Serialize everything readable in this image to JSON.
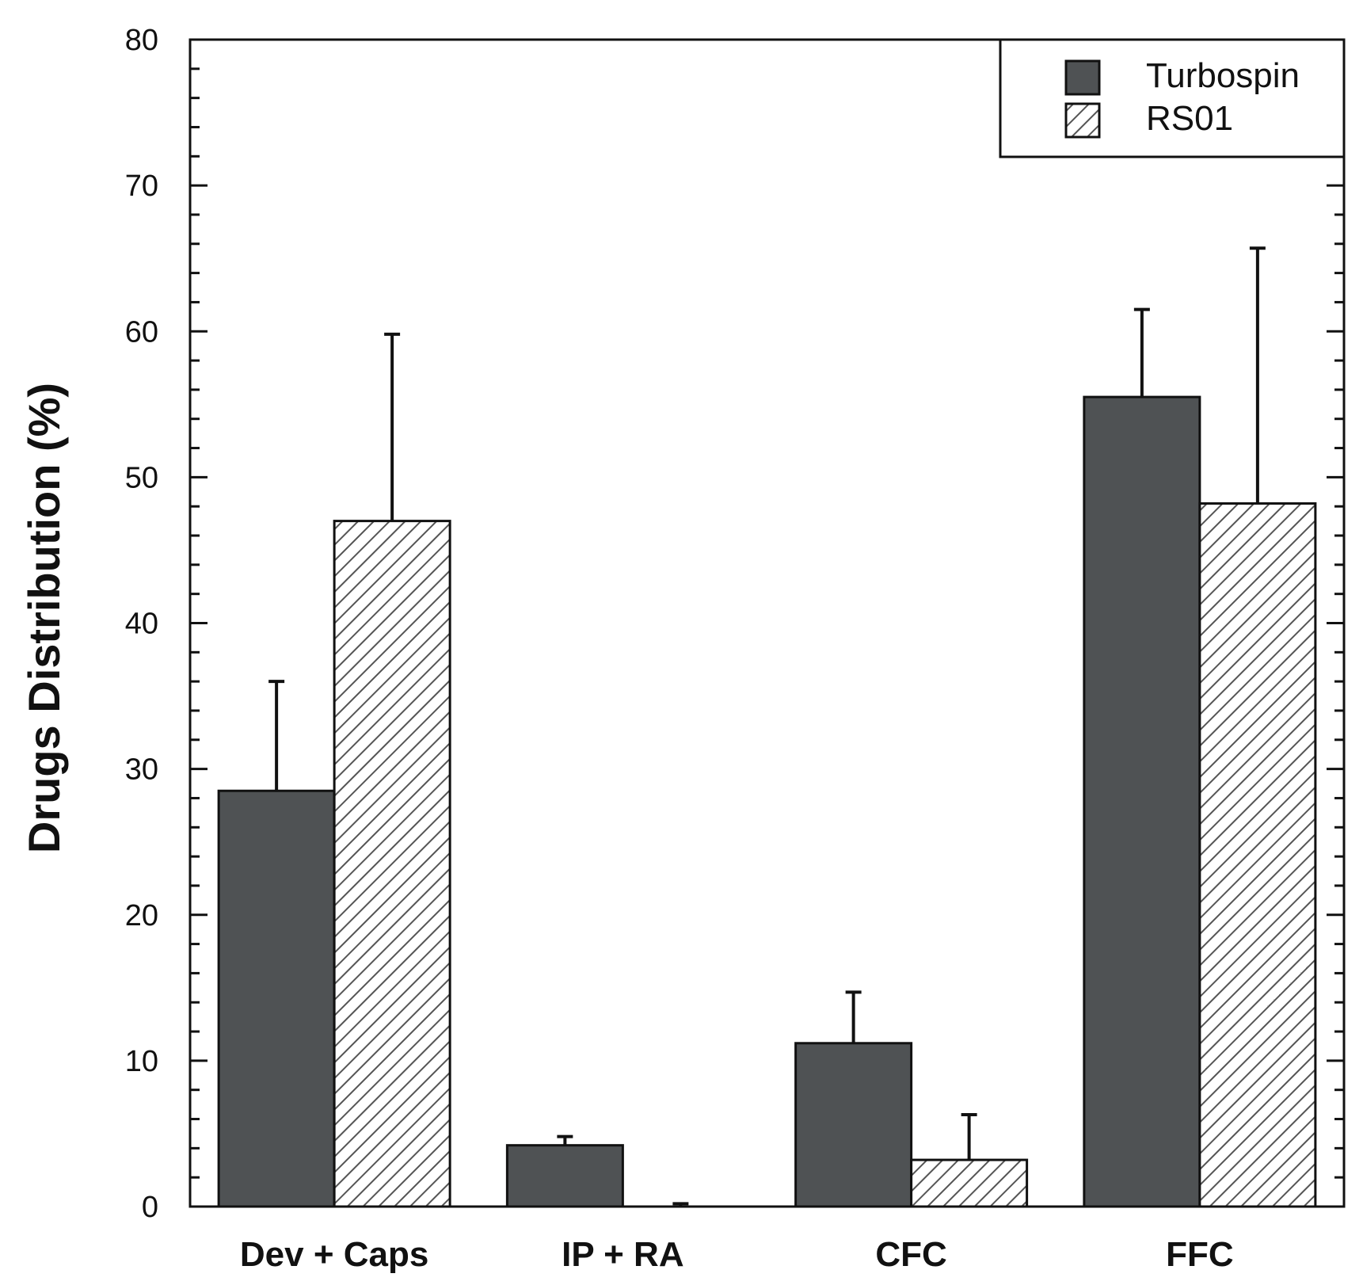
{
  "chart_data": {
    "type": "bar",
    "title": "",
    "xlabel": "",
    "ylabel": "Drugs Distribution (%)",
    "ylim": [
      0,
      80
    ],
    "yticks": [
      "0",
      "10",
      "20",
      "30",
      "40",
      "50",
      "60",
      "70",
      "80"
    ],
    "grid": false,
    "legend_position": "top-right",
    "categories": [
      "Dev + Caps",
      "IP + RA",
      "CFC",
      "FFC"
    ],
    "series": [
      {
        "name": "Turbospin",
        "fill": "solid",
        "color": "#4f5254",
        "values": [
          28.5,
          4.2,
          11.2,
          55.5
        ],
        "error": [
          7.5,
          0.6,
          3.5,
          6.0
        ]
      },
      {
        "name": "RS01",
        "fill": "hatched",
        "color": "#555555",
        "values": [
          47.0,
          0.0,
          3.2,
          48.2
        ],
        "error": [
          12.8,
          0.2,
          3.1,
          17.5
        ]
      }
    ]
  }
}
